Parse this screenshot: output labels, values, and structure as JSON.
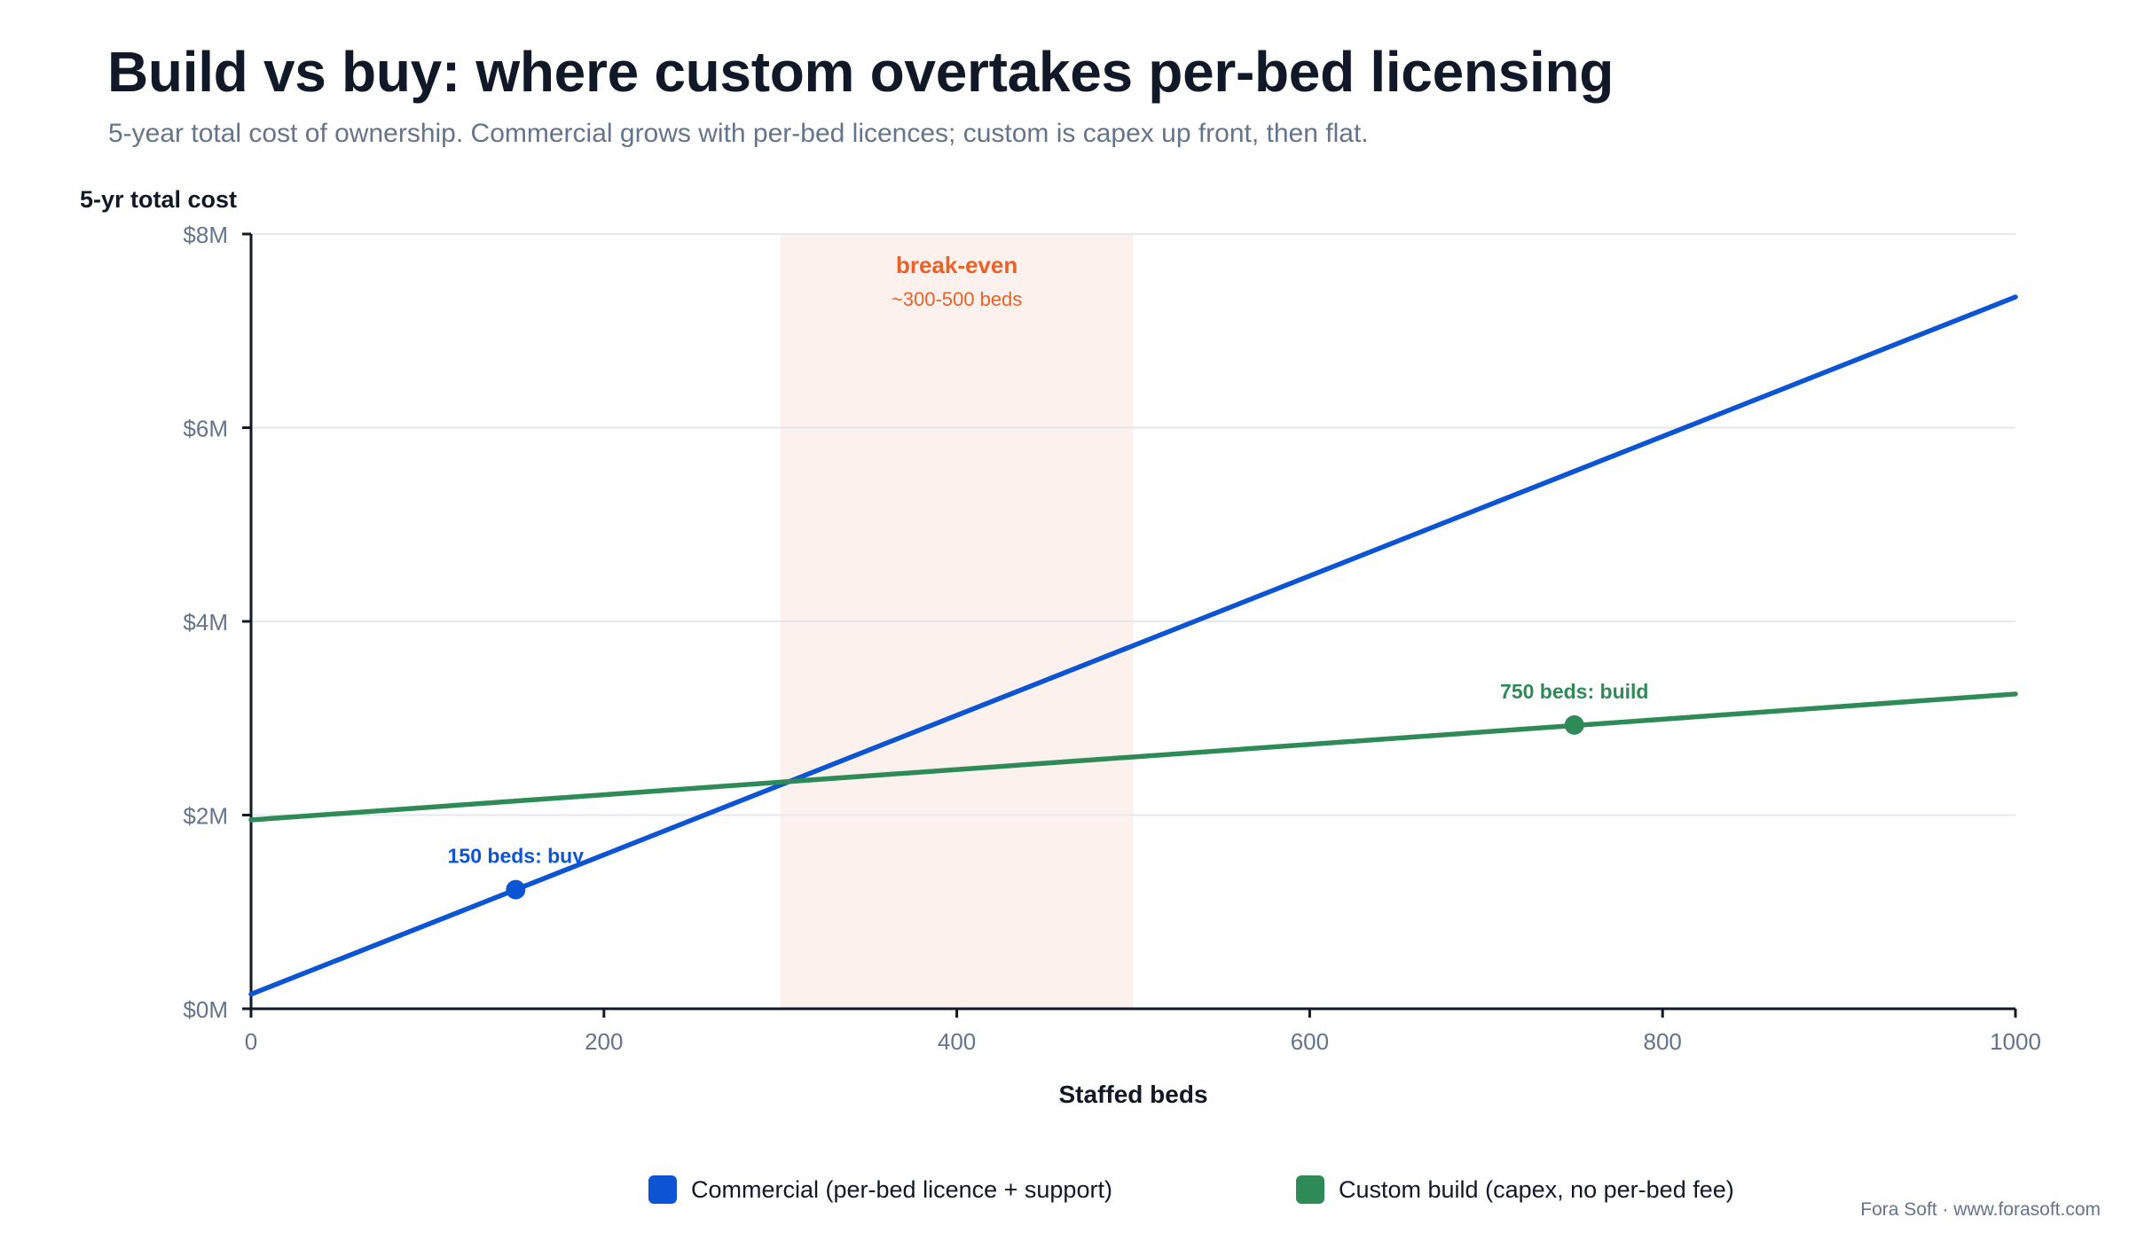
{
  "chart_data": {
    "type": "line",
    "title": "Build vs buy: where custom overtakes per-bed licensing",
    "subtitle": "5-year total cost of ownership. Commercial grows with per-bed licences; custom is capex up front, then flat.",
    "xlabel": "Staffed beds",
    "ylabel": "5-yr total cost",
    "xlim": [
      0,
      1000
    ],
    "ylim": [
      0,
      8
    ],
    "x_ticks": [
      0,
      200,
      400,
      600,
      800,
      1000
    ],
    "x_tick_labels": [
      "0",
      "200",
      "400",
      "600",
      "800",
      "1000"
    ],
    "y_ticks": [
      0,
      2,
      4,
      6,
      8
    ],
    "y_tick_labels": [
      "$0M",
      "$2M",
      "$4M",
      "$6M",
      "$8M"
    ],
    "grid": "horizontal",
    "legend_position": "bottom",
    "series": [
      {
        "name": "Commercial (per-bed licence + support)",
        "color": "#0b55d4",
        "x": [
          0,
          1000
        ],
        "y": [
          0.15,
          7.35
        ]
      },
      {
        "name": "Custom build (capex, no per-bed fee)",
        "color": "#2e8b57",
        "x": [
          0,
          1000
        ],
        "y": [
          1.95,
          3.25
        ]
      }
    ],
    "highlighted_points": [
      {
        "series": 0,
        "x": 150,
        "y": 1.23,
        "label": "150 beds: buy",
        "color": "#0b55d4"
      },
      {
        "series": 1,
        "x": 750,
        "y": 2.93,
        "label": "750 beds: build",
        "color": "#2e8b57"
      }
    ],
    "shaded_region": {
      "x_from": 300,
      "x_to": 500,
      "label": "break-even",
      "sublabel": "~300-500 beds",
      "fill": "#fcf1ec",
      "text_color": "#e8622a"
    }
  },
  "footer": "Fora Soft · www.forasoft.com"
}
